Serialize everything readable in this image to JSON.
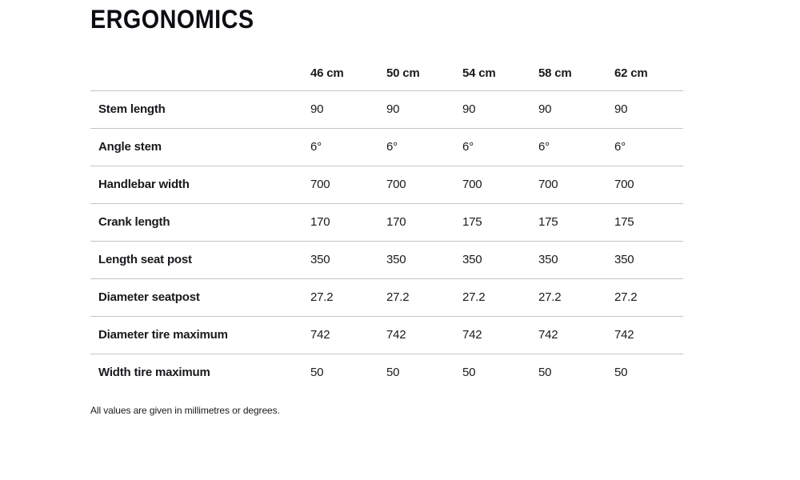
{
  "page": {
    "title": "ERGONOMICS",
    "footnote": "All values are given in millimetres or degrees."
  },
  "colors": {
    "text": "#1a1a1e",
    "title": "#0d0d12",
    "divider_line": "#c4c4c4",
    "background": "#ffffff"
  },
  "chart_data": {
    "type": "table",
    "title": "ERGONOMICS",
    "columns": [
      "46 cm",
      "50 cm",
      "54 cm",
      "58 cm",
      "62 cm"
    ],
    "row_header": "",
    "rows": [
      {
        "label": "Stem length",
        "values": [
          "90",
          "90",
          "90",
          "90",
          "90"
        ]
      },
      {
        "label": "Angle stem",
        "values": [
          "6°",
          "6°",
          "6°",
          "6°",
          "6°"
        ]
      },
      {
        "label": "Handlebar width",
        "values": [
          "700",
          "700",
          "700",
          "700",
          "700"
        ]
      },
      {
        "label": "Crank length",
        "values": [
          "170",
          "170",
          "175",
          "175",
          "175"
        ]
      },
      {
        "label": "Length seat post",
        "values": [
          "350",
          "350",
          "350",
          "350",
          "350"
        ]
      },
      {
        "label": "Diameter seatpost",
        "values": [
          "27.2",
          "27.2",
          "27.2",
          "27.2",
          "27.2"
        ]
      },
      {
        "label": "Diameter tire maximum",
        "values": [
          "742",
          "742",
          "742",
          "742",
          "742"
        ]
      },
      {
        "label": "Width tire maximum",
        "values": [
          "50",
          "50",
          "50",
          "50",
          "50"
        ]
      }
    ],
    "footnote": "All values are given in millimetres or degrees.",
    "layout": {
      "grid": "horizontal-row-dividers-only",
      "header_bold": true,
      "labels_bold": true
    }
  }
}
